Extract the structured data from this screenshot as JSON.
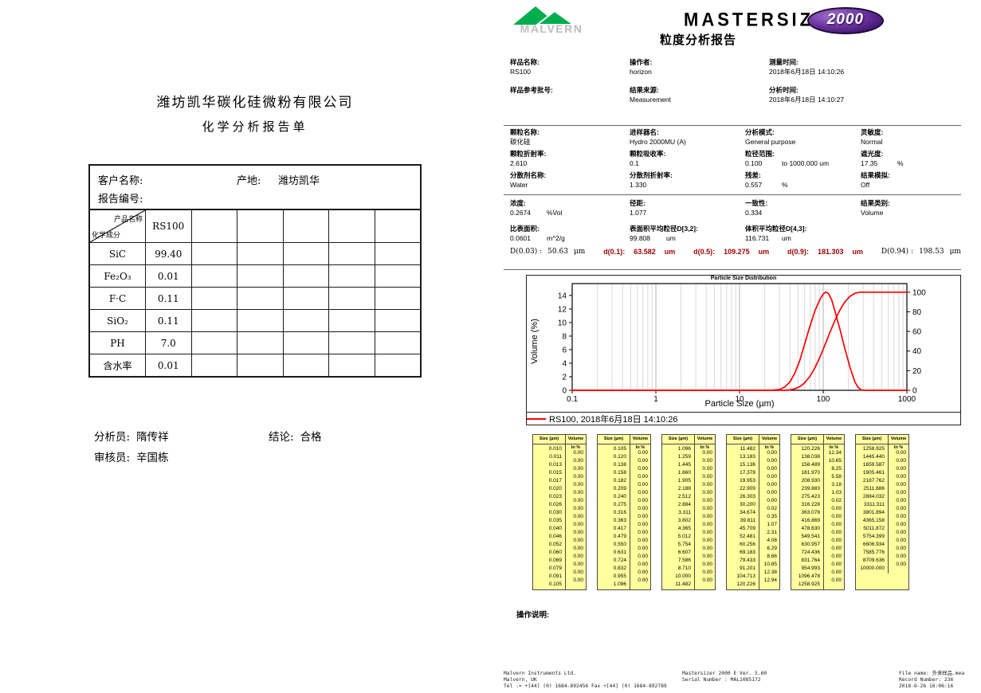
{
  "left_report": {
    "company": "潍坊凯华碳化硅微粉有限公司",
    "title": "化学分析报告单",
    "header": {
      "customer_label": "客户名称:",
      "origin_label": "产地:",
      "origin_value": "潍坊凯华",
      "report_no_label": "报告编号:"
    },
    "matrix": {
      "corner_top": "产品名称",
      "corner_bottom": "化学成分",
      "product": "RS100",
      "empty_columns": 5,
      "rows": [
        {
          "name": "SiC",
          "value": "99.40"
        },
        {
          "name": "Fe₂O₃",
          "value": "0.01"
        },
        {
          "name": "F·C",
          "value": "0.11"
        },
        {
          "name": "SiO₂",
          "value": "0.11"
        },
        {
          "name": "PH",
          "value": "7.0"
        },
        {
          "name": "含水率",
          "value": "0.01"
        }
      ]
    },
    "signoff": {
      "analyst_label": "分析员:",
      "analyst": "隋传祥",
      "conclusion_label": "结论:",
      "conclusion": "合格",
      "reviewer_label": "审核员:",
      "reviewer": "辛国栋"
    }
  },
  "right_report": {
    "brand": {
      "malvern": "MALVERN",
      "product": "MASTERSIZER",
      "badge": "2000",
      "report_title": "粒度分析报告"
    },
    "sample_info": [
      {
        "l": "样品名称:",
        "v": "RS100"
      },
      {
        "l": "操作者:",
        "v": "horizon"
      },
      {
        "l": "测量时间:",
        "v": "2018年6月18日 14:10:26"
      },
      {
        "l": "样品参考批号:",
        "v": ""
      },
      {
        "l": "结果来源:",
        "v": "Measurement"
      },
      {
        "l": "分析时间:",
        "v": "2018年6月18日 14:10:27"
      }
    ],
    "particle_info": [
      {
        "l": "颗粒名称:",
        "v": "碳化硅"
      },
      {
        "l": "进样器名:",
        "v": "Hydro 2000MU (A)"
      },
      {
        "l": "分析模式:",
        "v": "General purpose"
      },
      {
        "l": "灵敏度:",
        "v": "Normal"
      },
      {
        "l": "颗粒折射率:",
        "v": "2.610"
      },
      {
        "l": "颗粒吸收率:",
        "v": "0.1"
      },
      {
        "l": "粒径范围:",
        "v": "0.100",
        "u": "to 1000.000 um"
      },
      {
        "l": "遮光度:",
        "v": "17.35",
        "u": "%"
      },
      {
        "l": "分散剂名称:",
        "v": "Water"
      },
      {
        "l": "分散剂折射率:",
        "v": "1.330"
      },
      {
        "l": "残差:",
        "v": "0.557",
        "u": "%"
      },
      {
        "l": "结果模拟:",
        "v": "Off"
      }
    ],
    "result_info": [
      {
        "l": "浓度:",
        "v": "0.2674",
        "u": "%Vol"
      },
      {
        "l": "径距:",
        "v": "1.077"
      },
      {
        "l": "一致性:",
        "v": "0.334"
      },
      {
        "l": "结果类别:",
        "v": "Volume"
      },
      {
        "l": "比表面积:",
        "v": "0.0601",
        "u": "m^2/g"
      },
      {
        "l": "表面积平均粒径D[3,2]:",
        "v": "99.808",
        "u": "um"
      },
      {
        "l": "体积平均粒径D[4,3]:",
        "v": "116.731",
        "u": "um"
      }
    ],
    "d_values": [
      {
        "t": "D(0.03) :",
        "v": "50.63",
        "u": "μm",
        "c": "k"
      },
      {
        "t": "d(0.1):",
        "v": "63.582",
        "u": "um",
        "c": "r"
      },
      {
        "t": "d(0.5):",
        "v": "109.275",
        "u": "um",
        "c": "r"
      },
      {
        "t": "d(0.9):",
        "v": "181.303",
        "u": "um",
        "c": "r"
      },
      {
        "t": "D(0.94) :",
        "v": "198.53",
        "u": "μm",
        "c": "k"
      }
    ],
    "notes_label": "操作说明:",
    "footer": {
      "left": [
        "Malvern Instruments Ltd.",
        "Malvern, UK",
        "Tel := +[44] (0) 1684-892456 Fax +[44] (0) 1684-892789"
      ],
      "center": [
        "Mastersizer 2000 E Ver. 5.60",
        "Serial Number : MAL1085172"
      ],
      "right": [
        "File name: 外来样品.mea",
        "Record Number: 236",
        "2018-6-26 16:06:16"
      ]
    }
  },
  "size_tables": {
    "col_headers": [
      "Size (µm)",
      "Volume In %"
    ],
    "tables": [
      {
        "sizes": [
          "0.010",
          "0.011",
          "0.013",
          "0.015",
          "0.017",
          "0.020",
          "0.023",
          "0.026",
          "0.030",
          "0.035",
          "0.040",
          "0.046",
          "0.052",
          "0.060",
          "0.069",
          "0.079",
          "0.091",
          "0.105"
        ],
        "volumes": [
          "0.00",
          "0.00",
          "0.00",
          "0.00",
          "0.00",
          "0.00",
          "0.00",
          "0.00",
          "0.00",
          "0.00",
          "0.00",
          "0.00",
          "0.00",
          "0.00",
          "0.00",
          "0.00",
          "0.00"
        ]
      },
      {
        "sizes": [
          "0.105",
          "0.120",
          "0.138",
          "0.158",
          "0.182",
          "0.209",
          "0.240",
          "0.275",
          "0.316",
          "0.363",
          "0.417",
          "0.479",
          "0.550",
          "0.631",
          "0.724",
          "0.832",
          "0.955",
          "1.096"
        ],
        "volumes": [
          "0.00",
          "0.00",
          "0.00",
          "0.00",
          "0.00",
          "0.00",
          "0.00",
          "0.00",
          "0.00",
          "0.00",
          "0.00",
          "0.00",
          "0.00",
          "0.00",
          "0.00",
          "0.00",
          "0.00"
        ]
      },
      {
        "sizes": [
          "1.096",
          "1.259",
          "1.445",
          "1.660",
          "1.905",
          "2.188",
          "2.512",
          "2.884",
          "3.311",
          "3.802",
          "4.365",
          "5.012",
          "5.754",
          "6.607",
          "7.586",
          "8.710",
          "10.000",
          "11.482"
        ],
        "volumes": [
          "0.00",
          "0.00",
          "0.00",
          "0.00",
          "0.00",
          "0.00",
          "0.00",
          "0.00",
          "0.00",
          "0.00",
          "0.00",
          "0.00",
          "0.00",
          "0.00",
          "0.00",
          "0.00",
          "0.00"
        ]
      },
      {
        "sizes": [
          "11.482",
          "13.183",
          "15.136",
          "17.378",
          "19.953",
          "22.909",
          "26.303",
          "30.200",
          "34.674",
          "39.811",
          "45.709",
          "52.481",
          "60.256",
          "69.183",
          "79.433",
          "91.201",
          "104.713",
          "120.226"
        ],
        "volumes": [
          "0.00",
          "0.00",
          "0.00",
          "0.00",
          "0.00",
          "0.00",
          "0.00",
          "0.02",
          "0.35",
          "1.07",
          "2.31",
          "4.08",
          "6.29",
          "8.66",
          "10.85",
          "12.38",
          "12.94"
        ]
      },
      {
        "sizes": [
          "120.226",
          "138.038",
          "158.489",
          "181.970",
          "208.930",
          "239.883",
          "275.423",
          "316.228",
          "363.078",
          "416.869",
          "478.630",
          "549.541",
          "630.957",
          "724.436",
          "831.764",
          "954.993",
          "1096.478",
          "1258.925"
        ],
        "volumes": [
          "12.34",
          "10.65",
          "8.25",
          "5.58",
          "3.18",
          "1.03",
          "0.02",
          "0.00",
          "0.00",
          "0.00",
          "0.00",
          "0.00",
          "0.00",
          "0.00",
          "0.00",
          "0.00",
          "0.00"
        ]
      },
      {
        "sizes": [
          "1258.925",
          "1445.440",
          "1659.587",
          "1905.461",
          "2187.762",
          "2511.886",
          "2884.032",
          "3311.311",
          "3801.894",
          "4365.158",
          "5011.872",
          "5754.399",
          "6606.934",
          "7585.776",
          "8709.636",
          "10000.000"
        ],
        "volumes": [
          "0.00",
          "0.00",
          "0.00",
          "0.00",
          "0.00",
          "0.00",
          "0.00",
          "0.00",
          "0.00",
          "0.00",
          "0.00",
          "0.00",
          "0.00",
          "0.00",
          "0.00"
        ]
      }
    ]
  },
  "chart_data": {
    "type": "line",
    "title": "Particle Size Distribution",
    "xlabel": "Particle Size (µm)",
    "ylabel": "Volume (%)",
    "legend": "RS100, 2018年6月18日 14:10:26",
    "line_color": "#ff0000",
    "x_scale": "log",
    "xlim": [
      0.1,
      1000
    ],
    "ylim_left": [
      0,
      15.75
    ],
    "left_ticks": [
      0,
      2,
      4,
      6,
      8,
      10,
      12,
      14
    ],
    "right_ticks": [
      0,
      20,
      40,
      60,
      80,
      100
    ],
    "right_scale": 0.1448,
    "grid": "vertical-log",
    "legend_position": "bottom",
    "series": [
      {
        "name": "frequency",
        "axis": "left",
        "points": [
          [
            0.1,
            0
          ],
          [
            1,
            0
          ],
          [
            10,
            0
          ],
          [
            20,
            0
          ],
          [
            25,
            0.03
          ],
          [
            30.2,
            0.12
          ],
          [
            34.7,
            0.5
          ],
          [
            39.8,
            1.2
          ],
          [
            45.7,
            2.5
          ],
          [
            52.5,
            4.4
          ],
          [
            60.3,
            6.9
          ],
          [
            69.2,
            9.4
          ],
          [
            79.4,
            11.7
          ],
          [
            91.2,
            13.4
          ],
          [
            100,
            14.2
          ],
          [
            107,
            14.5
          ],
          [
            115,
            14.3
          ],
          [
            126,
            13.4
          ],
          [
            138,
            11.7
          ],
          [
            158.5,
            9.0
          ],
          [
            182,
            6.1
          ],
          [
            208.9,
            3.4
          ],
          [
            239.9,
            1.2
          ],
          [
            262,
            0.4
          ],
          [
            285,
            0.05
          ],
          [
            310,
            0
          ],
          [
            1000,
            0
          ]
        ]
      },
      {
        "name": "cumulative",
        "axis": "right",
        "points": [
          [
            0.1,
            0
          ],
          [
            10,
            0
          ],
          [
            25,
            0
          ],
          [
            30.2,
            0
          ],
          [
            34.674,
            0.02
          ],
          [
            39.811,
            0.37
          ],
          [
            45.709,
            1.44
          ],
          [
            52.481,
            3.75
          ],
          [
            60.256,
            7.83
          ],
          [
            69.183,
            14.12
          ],
          [
            79.433,
            22.78
          ],
          [
            91.201,
            33.63
          ],
          [
            104.713,
            46.01
          ],
          [
            120.226,
            58.95
          ],
          [
            138.038,
            71.29
          ],
          [
            158.489,
            81.94
          ],
          [
            181.97,
            90.19
          ],
          [
            208.93,
            95.77
          ],
          [
            239.883,
            98.95
          ],
          [
            275.423,
            99.98
          ],
          [
            316.228,
            100
          ],
          [
            1000,
            100
          ]
        ]
      }
    ]
  }
}
